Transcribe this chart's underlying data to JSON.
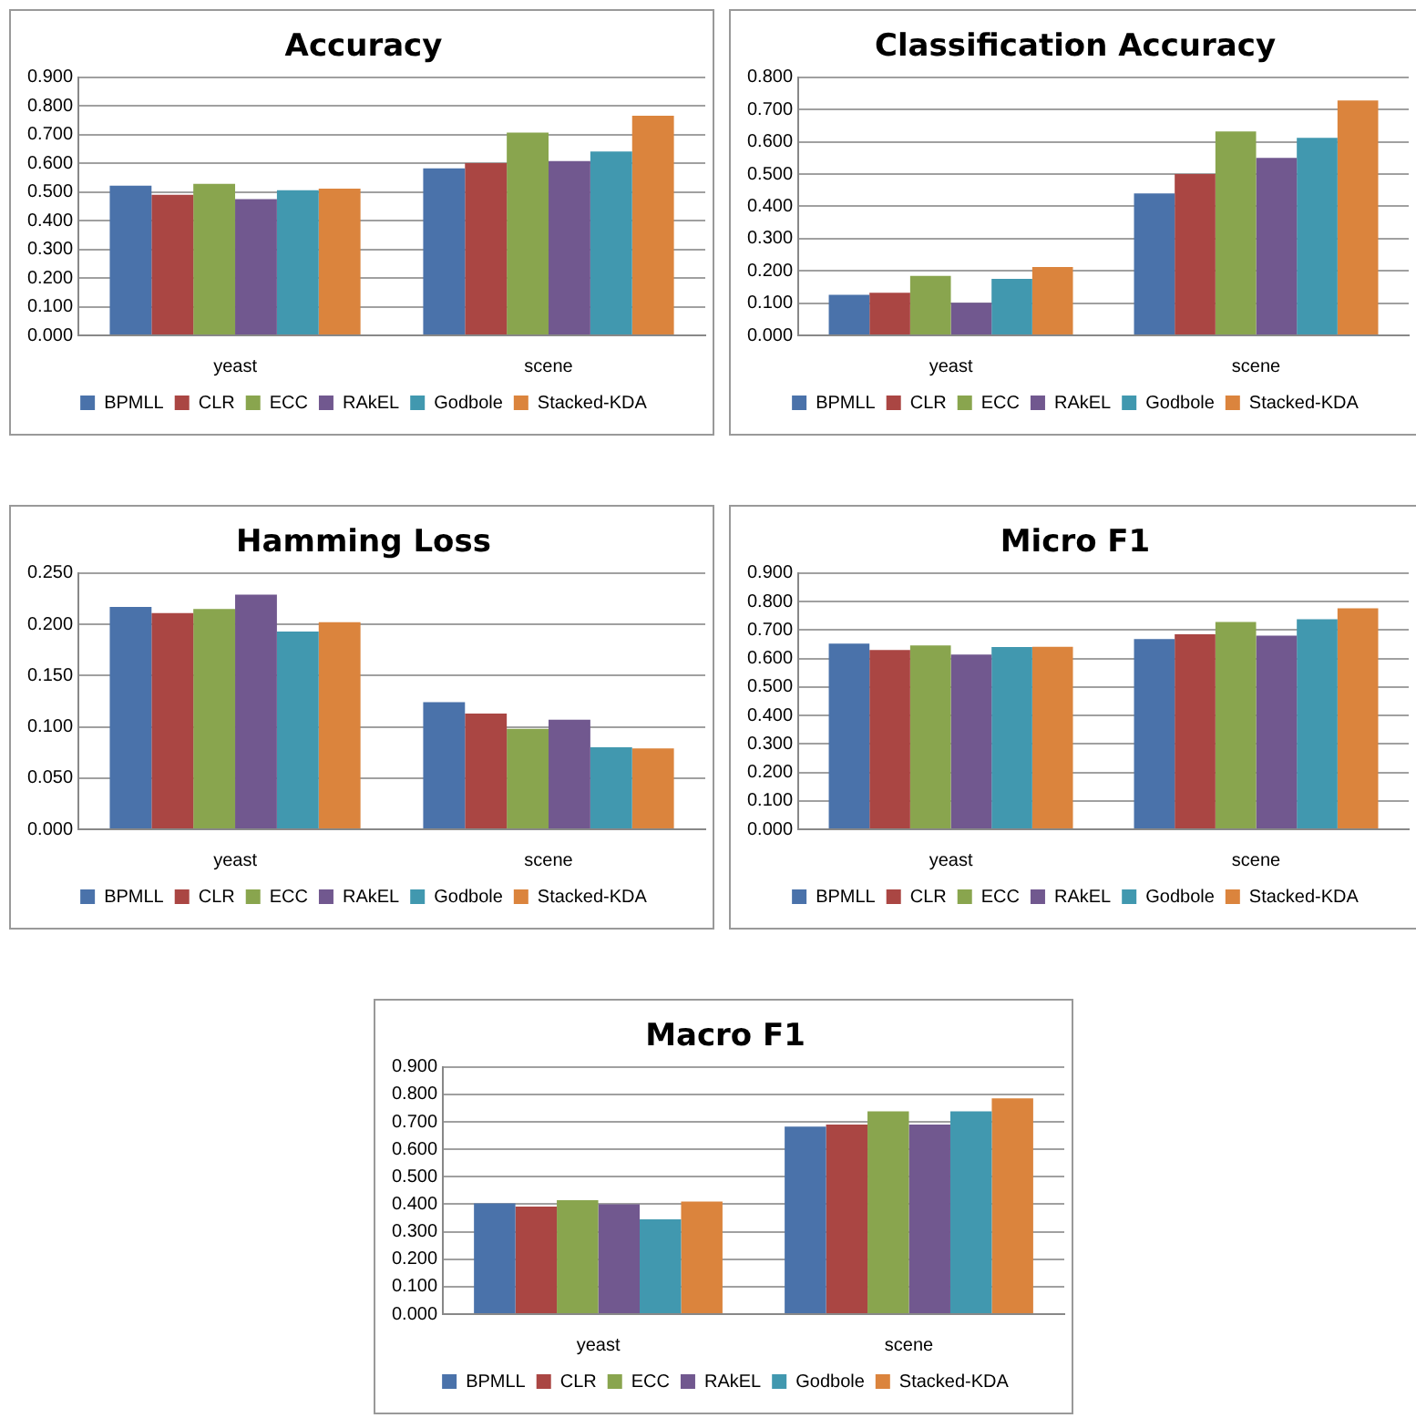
{
  "chart_data": [
    {
      "type": "bar",
      "title": "Accuracy",
      "categories": [
        "yeast",
        "scene"
      ],
      "ylim": [
        0,
        0.9
      ],
      "yticks": [
        {
          "value": 0,
          "label": "0.000"
        },
        {
          "value": 0.1,
          "label": "0.100"
        },
        {
          "value": 0.2,
          "label": "0.200"
        },
        {
          "value": 0.3,
          "label": "0.300"
        },
        {
          "value": 0.4,
          "label": "0.400"
        },
        {
          "value": 0.5,
          "label": "0.500"
        },
        {
          "value": 0.6,
          "label": "0.600"
        },
        {
          "value": 0.7,
          "label": "0.700"
        },
        {
          "value": 0.8,
          "label": "0.800"
        },
        {
          "value": 0.9,
          "label": "0.900"
        }
      ],
      "grid": "y",
      "legend": "bottom",
      "series": [
        {
          "name": "BPMLL",
          "color": "#4a72aa",
          "values": [
            0.522,
            0.582
          ]
        },
        {
          "name": "CLR",
          "color": "#aa4643",
          "values": [
            0.49,
            0.601
          ]
        },
        {
          "name": "ECC",
          "color": "#89a54e",
          "values": [
            0.528,
            0.707
          ]
        },
        {
          "name": "RAkEL",
          "color": "#71588f",
          "values": [
            0.475,
            0.608
          ]
        },
        {
          "name": "Godbole",
          "color": "#4198af",
          "values": [
            0.506,
            0.641
          ]
        },
        {
          "name": "Stacked-KDA",
          "color": "#db843d",
          "values": [
            0.512,
            0.766
          ]
        }
      ]
    },
    {
      "type": "bar",
      "title": "Classification Accuracy",
      "categories": [
        "yeast",
        "scene"
      ],
      "ylim": [
        0,
        0.8
      ],
      "yticks": [
        {
          "value": 0,
          "label": "0.000"
        },
        {
          "value": 0.1,
          "label": "0.100"
        },
        {
          "value": 0.2,
          "label": "0.200"
        },
        {
          "value": 0.3,
          "label": "0.300"
        },
        {
          "value": 0.4,
          "label": "0.400"
        },
        {
          "value": 0.5,
          "label": "0.500"
        },
        {
          "value": 0.6,
          "label": "0.600"
        },
        {
          "value": 0.7,
          "label": "0.700"
        },
        {
          "value": 0.8,
          "label": "0.800"
        }
      ],
      "grid": "y",
      "legend": "bottom",
      "series": [
        {
          "name": "BPMLL",
          "color": "#4a72aa",
          "values": [
            0.126,
            0.44
          ]
        },
        {
          "name": "CLR",
          "color": "#aa4643",
          "values": [
            0.132,
            0.5
          ]
        },
        {
          "name": "ECC",
          "color": "#89a54e",
          "values": [
            0.184,
            0.632
          ]
        },
        {
          "name": "RAkEL",
          "color": "#71588f",
          "values": [
            0.101,
            0.55
          ]
        },
        {
          "name": "Godbole",
          "color": "#4198af",
          "values": [
            0.175,
            0.612
          ]
        },
        {
          "name": "Stacked-KDA",
          "color": "#db843d",
          "values": [
            0.212,
            0.728
          ]
        }
      ]
    },
    {
      "type": "bar",
      "title": "Hamming Loss",
      "categories": [
        "yeast",
        "scene"
      ],
      "ylim": [
        0,
        0.25
      ],
      "yticks": [
        {
          "value": 0,
          "label": "0.000"
        },
        {
          "value": 0.05,
          "label": "0.050"
        },
        {
          "value": 0.1,
          "label": "0.100"
        },
        {
          "value": 0.15,
          "label": "0.150"
        },
        {
          "value": 0.2,
          "label": "0.200"
        },
        {
          "value": 0.25,
          "label": "0.250"
        }
      ],
      "grid": "y",
      "legend": "bottom",
      "series": [
        {
          "name": "BPMLL",
          "color": "#4a72aa",
          "values": [
            0.217,
            0.124
          ]
        },
        {
          "name": "CLR",
          "color": "#aa4643",
          "values": [
            0.211,
            0.113
          ]
        },
        {
          "name": "ECC",
          "color": "#89a54e",
          "values": [
            0.215,
            0.098
          ]
        },
        {
          "name": "RAkEL",
          "color": "#71588f",
          "values": [
            0.229,
            0.107
          ]
        },
        {
          "name": "Godbole",
          "color": "#4198af",
          "values": [
            0.193,
            0.08
          ]
        },
        {
          "name": "Stacked-KDA",
          "color": "#db843d",
          "values": [
            0.202,
            0.079
          ]
        }
      ]
    },
    {
      "type": "bar",
      "title": "Micro F1",
      "categories": [
        "yeast",
        "scene"
      ],
      "ylim": [
        0,
        0.9
      ],
      "yticks": [
        {
          "value": 0,
          "label": "0.000"
        },
        {
          "value": 0.1,
          "label": "0.100"
        },
        {
          "value": 0.2,
          "label": "0.200"
        },
        {
          "value": 0.3,
          "label": "0.300"
        },
        {
          "value": 0.4,
          "label": "0.400"
        },
        {
          "value": 0.5,
          "label": "0.500"
        },
        {
          "value": 0.6,
          "label": "0.600"
        },
        {
          "value": 0.7,
          "label": "0.700"
        },
        {
          "value": 0.8,
          "label": "0.800"
        },
        {
          "value": 0.9,
          "label": "0.900"
        }
      ],
      "grid": "y",
      "legend": "bottom",
      "series": [
        {
          "name": "BPMLL",
          "color": "#4a72aa",
          "values": [
            0.652,
            0.668
          ]
        },
        {
          "name": "CLR",
          "color": "#aa4643",
          "values": [
            0.63,
            0.685
          ]
        },
        {
          "name": "ECC",
          "color": "#89a54e",
          "values": [
            0.646,
            0.728
          ]
        },
        {
          "name": "RAkEL",
          "color": "#71588f",
          "values": [
            0.614,
            0.68
          ]
        },
        {
          "name": "Godbole",
          "color": "#4198af",
          "values": [
            0.64,
            0.738
          ]
        },
        {
          "name": "Stacked-KDA",
          "color": "#db843d",
          "values": [
            0.641,
            0.776
          ]
        }
      ]
    },
    {
      "type": "bar",
      "title": "Macro F1",
      "categories": [
        "yeast",
        "scene"
      ],
      "ylim": [
        0,
        0.9
      ],
      "yticks": [
        {
          "value": 0,
          "label": "0.000"
        },
        {
          "value": 0.1,
          "label": "0.100"
        },
        {
          "value": 0.2,
          "label": "0.200"
        },
        {
          "value": 0.3,
          "label": "0.300"
        },
        {
          "value": 0.4,
          "label": "0.400"
        },
        {
          "value": 0.5,
          "label": "0.500"
        },
        {
          "value": 0.6,
          "label": "0.600"
        },
        {
          "value": 0.7,
          "label": "0.700"
        },
        {
          "value": 0.8,
          "label": "0.800"
        },
        {
          "value": 0.9,
          "label": "0.900"
        }
      ],
      "grid": "y",
      "legend": "bottom",
      "series": [
        {
          "name": "BPMLL",
          "color": "#4a72aa",
          "values": [
            0.403,
            0.683
          ]
        },
        {
          "name": "CLR",
          "color": "#aa4643",
          "values": [
            0.392,
            0.69
          ]
        },
        {
          "name": "ECC",
          "color": "#89a54e",
          "values": [
            0.415,
            0.738
          ]
        },
        {
          "name": "RAkEL",
          "color": "#71588f",
          "values": [
            0.4,
            0.69
          ]
        },
        {
          "name": "Godbole",
          "color": "#4198af",
          "values": [
            0.345,
            0.738
          ]
        },
        {
          "name": "Stacked-KDA",
          "color": "#db843d",
          "values": [
            0.41,
            0.786
          ]
        }
      ]
    }
  ]
}
